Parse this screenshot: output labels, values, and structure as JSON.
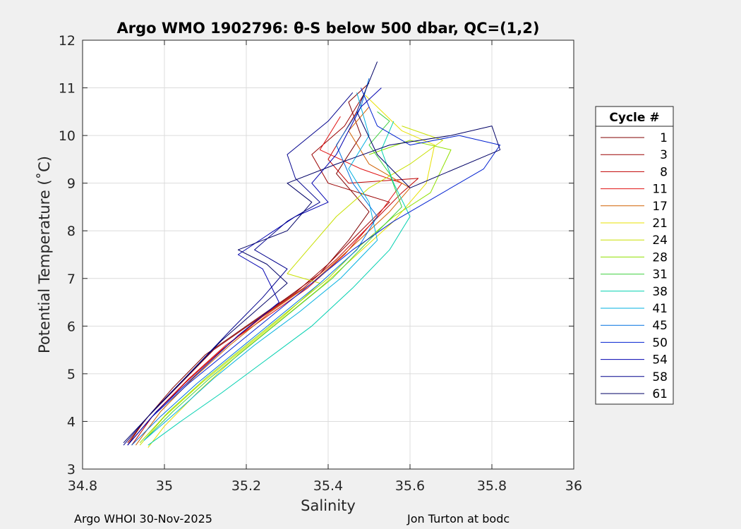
{
  "chart_data": {
    "type": "line",
    "title": "Argo WMO 1902796: θ-S below 500 dbar,  QC=(1,2)",
    "xlabel": "Salinity",
    "ylabel": "Potential Temperature (˚C)",
    "xlim": [
      34.8,
      36
    ],
    "ylim": [
      3,
      12
    ],
    "xticks": [
      "34.8",
      "35",
      "35.2",
      "35.4",
      "35.6",
      "35.8",
      "36"
    ],
    "yticks": [
      "3",
      "4",
      "5",
      "6",
      "7",
      "8",
      "9",
      "10",
      "11",
      "12"
    ],
    "grid": true,
    "legend": {
      "title": "Cycle #",
      "placement": "right"
    },
    "series": [
      {
        "name": "1",
        "color": "#800000",
        "points": [
          [
            34.91,
            3.5
          ],
          [
            34.95,
            4.0
          ],
          [
            35.02,
            4.7
          ],
          [
            35.1,
            5.4
          ],
          [
            35.2,
            6.0
          ],
          [
            35.3,
            6.6
          ],
          [
            35.38,
            7.1
          ],
          [
            35.45,
            7.8
          ],
          [
            35.5,
            8.4
          ],
          [
            35.42,
            9.2
          ],
          [
            35.48,
            10.0
          ],
          [
            35.45,
            10.7
          ],
          [
            35.5,
            11.1
          ]
        ]
      },
      {
        "name": "3",
        "color": "#9a0000",
        "points": [
          [
            34.91,
            3.55
          ],
          [
            34.96,
            4.1
          ],
          [
            35.04,
            4.8
          ],
          [
            35.12,
            5.5
          ],
          [
            35.22,
            6.1
          ],
          [
            35.32,
            6.7
          ],
          [
            35.4,
            7.3
          ],
          [
            35.48,
            8.0
          ],
          [
            35.55,
            8.6
          ],
          [
            35.4,
            9.0
          ],
          [
            35.36,
            9.6
          ],
          [
            35.44,
            10.2
          ],
          [
            35.49,
            10.9
          ]
        ]
      },
      {
        "name": "8",
        "color": "#c00000",
        "points": [
          [
            34.92,
            3.5
          ],
          [
            34.97,
            4.1
          ],
          [
            35.05,
            4.8
          ],
          [
            35.14,
            5.5
          ],
          [
            35.24,
            6.2
          ],
          [
            35.34,
            6.8
          ],
          [
            35.42,
            7.4
          ],
          [
            35.5,
            8.1
          ],
          [
            35.58,
            8.8
          ],
          [
            35.62,
            9.1
          ],
          [
            35.45,
            9.0
          ],
          [
            35.4,
            9.5
          ],
          [
            35.47,
            10.5
          ]
        ]
      },
      {
        "name": "11",
        "color": "#e01010",
        "points": [
          [
            34.92,
            3.6
          ],
          [
            34.98,
            4.2
          ],
          [
            35.06,
            4.9
          ],
          [
            35.15,
            5.6
          ],
          [
            35.25,
            6.2
          ],
          [
            35.35,
            6.8
          ],
          [
            35.44,
            7.5
          ],
          [
            35.52,
            8.3
          ],
          [
            35.58,
            9.0
          ],
          [
            35.48,
            9.3
          ],
          [
            35.38,
            9.7
          ],
          [
            35.43,
            10.4
          ]
        ]
      },
      {
        "name": "17",
        "color": "#d06000",
        "points": [
          [
            34.93,
            3.5
          ],
          [
            34.99,
            4.2
          ],
          [
            35.07,
            4.9
          ],
          [
            35.16,
            5.6
          ],
          [
            35.26,
            6.3
          ],
          [
            35.36,
            6.9
          ],
          [
            35.45,
            7.6
          ],
          [
            35.55,
            8.4
          ],
          [
            35.6,
            8.9
          ],
          [
            35.5,
            9.4
          ],
          [
            35.45,
            10.1
          ],
          [
            35.5,
            10.6
          ]
        ]
      },
      {
        "name": "21",
        "color": "#e8e000",
        "points": [
          [
            34.96,
            3.45
          ],
          [
            35.0,
            3.9
          ],
          [
            35.08,
            4.6
          ],
          [
            35.18,
            5.4
          ],
          [
            35.28,
            6.1
          ],
          [
            35.38,
            6.8
          ],
          [
            35.47,
            7.5
          ],
          [
            35.56,
            8.2
          ],
          [
            35.64,
            9.0
          ],
          [
            35.66,
            9.8
          ],
          [
            35.58,
            10.1
          ],
          [
            35.52,
            10.6
          ],
          [
            35.49,
            10.85
          ]
        ]
      },
      {
        "name": "24",
        "color": "#c8e000",
        "points": [
          [
            34.94,
            3.5
          ],
          [
            35.0,
            4.1
          ],
          [
            35.09,
            4.8
          ],
          [
            35.19,
            5.5
          ],
          [
            35.29,
            6.2
          ],
          [
            35.38,
            6.9
          ],
          [
            35.3,
            7.1
          ],
          [
            35.35,
            7.6
          ],
          [
            35.42,
            8.3
          ],
          [
            35.5,
            8.9
          ],
          [
            35.6,
            9.4
          ],
          [
            35.68,
            9.9
          ],
          [
            35.58,
            10.2
          ]
        ]
      },
      {
        "name": "28",
        "color": "#90e000",
        "points": [
          [
            34.94,
            3.55
          ],
          [
            35.01,
            4.2
          ],
          [
            35.1,
            4.9
          ],
          [
            35.2,
            5.6
          ],
          [
            35.3,
            6.3
          ],
          [
            35.4,
            7.0
          ],
          [
            35.48,
            7.7
          ],
          [
            35.56,
            8.3
          ],
          [
            35.65,
            8.8
          ],
          [
            35.7,
            9.7
          ],
          [
            35.6,
            9.9
          ],
          [
            35.5,
            9.6
          ]
        ]
      },
      {
        "name": "31",
        "color": "#40d040",
        "points": [
          [
            34.95,
            3.6
          ],
          [
            35.02,
            4.2
          ],
          [
            35.11,
            4.9
          ],
          [
            35.21,
            5.6
          ],
          [
            35.31,
            6.3
          ],
          [
            35.41,
            7.0
          ],
          [
            35.5,
            7.8
          ],
          [
            35.58,
            8.5
          ],
          [
            35.55,
            9.2
          ],
          [
            35.5,
            9.8
          ],
          [
            35.55,
            10.3
          ],
          [
            35.52,
            10.5
          ]
        ]
      },
      {
        "name": "38",
        "color": "#00d0b0",
        "points": [
          [
            34.96,
            3.5
          ],
          [
            35.04,
            4.0
          ],
          [
            35.14,
            4.6
          ],
          [
            35.25,
            5.3
          ],
          [
            35.36,
            6.0
          ],
          [
            35.46,
            6.8
          ],
          [
            35.55,
            7.6
          ],
          [
            35.6,
            8.3
          ],
          [
            35.56,
            9.0
          ],
          [
            35.53,
            9.7
          ],
          [
            35.56,
            10.3
          ]
        ]
      },
      {
        "name": "41",
        "color": "#00b0e0",
        "points": [
          [
            34.95,
            3.6
          ],
          [
            35.03,
            4.2
          ],
          [
            35.12,
            4.9
          ],
          [
            35.22,
            5.6
          ],
          [
            35.33,
            6.3
          ],
          [
            35.43,
            7.0
          ],
          [
            35.52,
            7.8
          ],
          [
            35.5,
            8.6
          ],
          [
            35.45,
            9.3
          ],
          [
            35.5,
            10.0
          ],
          [
            35.47,
            10.9
          ]
        ]
      },
      {
        "name": "45",
        "color": "#0070e0",
        "points": [
          [
            34.92,
            3.5
          ],
          [
            34.99,
            4.1
          ],
          [
            35.08,
            4.8
          ],
          [
            35.18,
            5.5
          ],
          [
            35.28,
            6.2
          ],
          [
            35.38,
            6.9
          ],
          [
            35.47,
            7.6
          ],
          [
            35.52,
            8.3
          ],
          [
            35.46,
            9.0
          ],
          [
            35.42,
            9.8
          ],
          [
            35.48,
            10.6
          ],
          [
            35.5,
            11.2
          ]
        ]
      },
      {
        "name": "50",
        "color": "#0020d0",
        "points": [
          [
            34.91,
            3.5
          ],
          [
            34.97,
            4.1
          ],
          [
            35.06,
            4.8
          ],
          [
            35.16,
            5.5
          ],
          [
            35.26,
            6.2
          ],
          [
            35.36,
            6.9
          ],
          [
            35.46,
            7.6
          ],
          [
            35.56,
            8.2
          ],
          [
            35.66,
            8.7
          ],
          [
            35.78,
            9.3
          ],
          [
            35.82,
            9.8
          ],
          [
            35.72,
            10.0
          ],
          [
            35.6,
            9.8
          ],
          [
            35.52,
            10.2
          ],
          [
            35.48,
            11.0
          ]
        ]
      },
      {
        "name": "54",
        "color": "#0000b0",
        "points": [
          [
            34.91,
            3.5
          ],
          [
            34.98,
            4.2
          ],
          [
            35.08,
            5.0
          ],
          [
            35.18,
            5.8
          ],
          [
            35.28,
            6.5
          ],
          [
            35.24,
            7.2
          ],
          [
            35.18,
            7.5
          ],
          [
            35.25,
            7.9
          ],
          [
            35.32,
            8.3
          ],
          [
            35.4,
            8.6
          ],
          [
            35.36,
            9.0
          ],
          [
            35.42,
            9.6
          ],
          [
            35.48,
            10.6
          ],
          [
            35.53,
            11.0
          ]
        ]
      },
      {
        "name": "58",
        "color": "#00008c",
        "points": [
          [
            34.9,
            3.5
          ],
          [
            34.97,
            4.2
          ],
          [
            35.06,
            5.0
          ],
          [
            35.16,
            5.9
          ],
          [
            35.24,
            6.6
          ],
          [
            35.3,
            7.2
          ],
          [
            35.22,
            7.6
          ],
          [
            35.3,
            8.2
          ],
          [
            35.38,
            8.6
          ],
          [
            35.32,
            9.1
          ],
          [
            35.3,
            9.6
          ],
          [
            35.4,
            10.3
          ],
          [
            35.46,
            10.9
          ]
        ]
      },
      {
        "name": "61",
        "color": "#000066",
        "points": [
          [
            34.9,
            3.55
          ],
          [
            34.96,
            4.1
          ],
          [
            35.05,
            4.9
          ],
          [
            35.14,
            5.7
          ],
          [
            35.22,
            6.3
          ],
          [
            35.3,
            6.9
          ],
          [
            35.25,
            7.3
          ],
          [
            35.18,
            7.6
          ],
          [
            35.3,
            8.0
          ],
          [
            35.36,
            8.6
          ],
          [
            35.3,
            9.0
          ],
          [
            35.42,
            9.4
          ],
          [
            35.55,
            9.8
          ],
          [
            35.7,
            10.0
          ],
          [
            35.8,
            10.2
          ],
          [
            35.82,
            9.7
          ],
          [
            35.6,
            8.9
          ],
          [
            35.52,
            9.6
          ],
          [
            35.47,
            10.5
          ],
          [
            35.52,
            11.55
          ]
        ]
      }
    ]
  },
  "footer": {
    "left": "Argo WHOI 30-Nov-2025",
    "right": "Jon Turton at bodc"
  }
}
